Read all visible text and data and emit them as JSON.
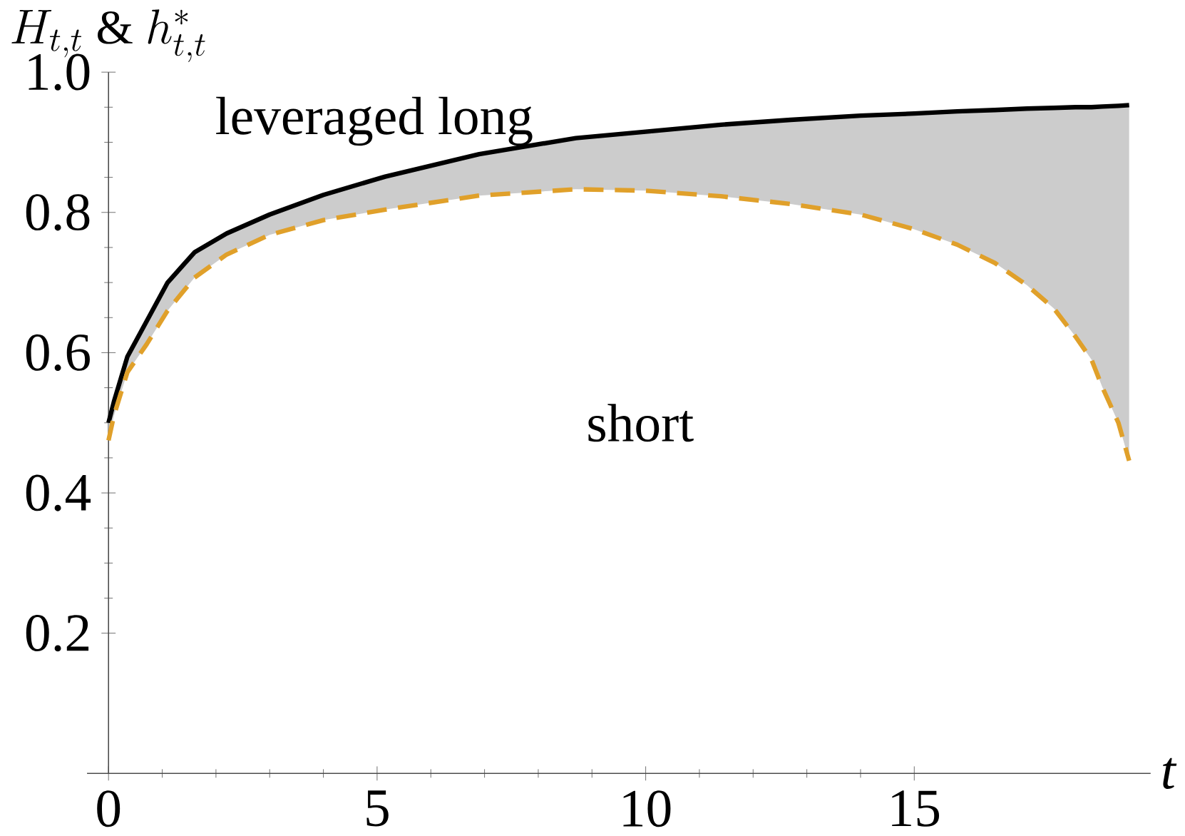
{
  "chart_data": {
    "type": "line",
    "xlabel": "t",
    "ylabel": "H_{t,t}\\ \\&\\ h^{*}_{t,t}",
    "x": [
      0,
      0.1,
      0.35,
      0.71,
      1.1,
      1.6,
      2.2,
      3,
      4,
      5.15,
      6.9,
      8.7,
      10,
      11.4,
      12.7,
      14,
      15,
      15.8,
      16.5,
      17.1,
      17.6,
      18,
      18.3,
      18.5,
      18.8,
      19
    ],
    "series": [
      {
        "color": "#000000",
        "line_style": "solid",
        "values": [
          0.5,
          0.53,
          0.594,
          0.645,
          0.7,
          0.743,
          0.77,
          0.797,
          0.825,
          0.851,
          0.883,
          0.906,
          0.915,
          0.925,
          0.932,
          0.938,
          0.941,
          0.944,
          0.946,
          0.948,
          0.949,
          0.95,
          0.95,
          0.951,
          0.952,
          0.953
        ],
        "lower": [
          0.475,
          0.51,
          0.572,
          0.612,
          0.66,
          0.707,
          0.74,
          0.768,
          0.789,
          0.804,
          0.824,
          0.833,
          0.831,
          0.823,
          0.812,
          0.797,
          0.776,
          0.754,
          0.728,
          0.696,
          0.663,
          0.623,
          0.59,
          0.551,
          0.5,
          0.446
        ],
        "upper": [
          0.5,
          0.53,
          0.594,
          0.645,
          0.7,
          0.743,
          0.77,
          0.797,
          0.825,
          0.851,
          0.883,
          0.906,
          0.915,
          0.925,
          0.932,
          0.938,
          0.941,
          0.944,
          0.946,
          0.948,
          0.949,
          0.95,
          0.95,
          0.951,
          0.952,
          0.953
        ]
      },
      {
        "color": "#e0a02a",
        "line_style": "dashed",
        "values": [
          0.475,
          0.51,
          0.572,
          0.612,
          0.66,
          0.707,
          0.74,
          0.768,
          0.789,
          0.804,
          0.824,
          0.833,
          0.831,
          0.823,
          0.812,
          0.797,
          0.776,
          0.754,
          0.728,
          0.696,
          0.663,
          0.623,
          0.59,
          0.551,
          0.5,
          0.446
        ]
      }
    ],
    "annotations": [
      "leveraged long",
      "short"
    ],
    "xlim": [
      -0.4,
      19.4
    ],
    "ylim": [
      0,
      1.0
    ],
    "xticks": [
      0,
      5,
      10,
      15
    ],
    "yticks": [
      0.2,
      0.4,
      0.6,
      0.8,
      {
        "value": 1.0,
        "label": "1.0"
      }
    ],
    "marker": "none"
  }
}
